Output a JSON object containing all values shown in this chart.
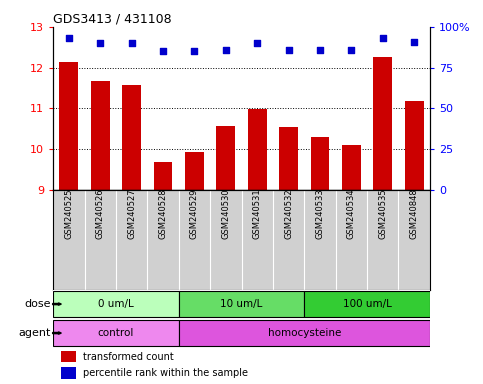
{
  "title": "GDS3413 / 431108",
  "samples": [
    "GSM240525",
    "GSM240526",
    "GSM240527",
    "GSM240528",
    "GSM240529",
    "GSM240530",
    "GSM240531",
    "GSM240532",
    "GSM240533",
    "GSM240534",
    "GSM240535",
    "GSM240848"
  ],
  "transformed_count": [
    12.15,
    11.68,
    11.58,
    9.68,
    9.92,
    10.58,
    10.98,
    10.55,
    10.3,
    10.1,
    12.25,
    11.18
  ],
  "percentile_rank": [
    93,
    90,
    90,
    85,
    85,
    86,
    90,
    86,
    86,
    86,
    93,
    91
  ],
  "ylim_left": [
    9,
    13
  ],
  "ylim_right": [
    0,
    100
  ],
  "yticks_left": [
    9,
    10,
    11,
    12,
    13
  ],
  "yticks_right": [
    0,
    25,
    50,
    75,
    100
  ],
  "yticklabels_right": [
    "0",
    "25",
    "50",
    "75",
    "100%"
  ],
  "bar_color": "#cc0000",
  "dot_color": "#0000cc",
  "bar_bottom": 9,
  "dose_groups": [
    {
      "label": "0 um/L",
      "start": 0,
      "end": 4,
      "color": "#bbffbb"
    },
    {
      "label": "10 um/L",
      "start": 4,
      "end": 8,
      "color": "#66dd66"
    },
    {
      "label": "100 um/L",
      "start": 8,
      "end": 12,
      "color": "#33cc33"
    }
  ],
  "agent_groups": [
    {
      "label": "control",
      "start": 0,
      "end": 4,
      "color": "#ee88ee"
    },
    {
      "label": "homocysteine",
      "start": 4,
      "end": 12,
      "color": "#dd55dd"
    }
  ],
  "dose_label": "dose",
  "agent_label": "agent",
  "legend_bar_label": "transformed count",
  "legend_dot_label": "percentile rank within the sample",
  "background_color": "#ffffff",
  "plot_bg": "#ffffff",
  "label_area_bg": "#d0d0d0"
}
